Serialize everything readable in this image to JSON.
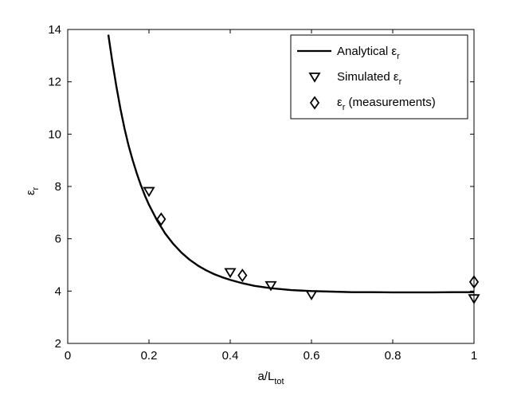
{
  "chart_data": {
    "type": "line",
    "title": "",
    "xlabel": {
      "main": "a/L",
      "sub": "tot"
    },
    "ylabel": {
      "main": "ε",
      "sub": "r"
    },
    "xlim": [
      0,
      1
    ],
    "ylim": [
      2,
      14
    ],
    "xticks": [
      0,
      0.2,
      0.4,
      0.6,
      0.8,
      1
    ],
    "xtick_labels": [
      "0",
      "0.2",
      "0.4",
      "0.6",
      "0.8",
      "1"
    ],
    "yticks": [
      2,
      4,
      6,
      8,
      10,
      12,
      14
    ],
    "ytick_labels": [
      "2",
      "4",
      "6",
      "8",
      "10",
      "12",
      "14"
    ],
    "grid": false,
    "legend_position": "top-right",
    "series": [
      {
        "name": {
          "main": "Analytical ε",
          "sub": "r",
          "tail": ""
        },
        "kind": "line",
        "color": "#000000",
        "x": [
          0.1,
          0.11,
          0.12,
          0.13,
          0.14,
          0.15,
          0.16,
          0.17,
          0.18,
          0.19,
          0.2,
          0.22,
          0.24,
          0.26,
          0.28,
          0.3,
          0.32,
          0.34,
          0.36,
          0.38,
          0.4,
          0.43,
          0.46,
          0.5,
          0.55,
          0.6,
          0.65,
          0.7,
          0.75,
          0.8,
          0.85,
          0.9,
          0.95,
          1.0
        ],
        "y": [
          13.8,
          12.75,
          11.8,
          10.95,
          10.2,
          9.55,
          9.0,
          8.5,
          8.05,
          7.65,
          7.3,
          6.7,
          6.2,
          5.8,
          5.47,
          5.2,
          4.98,
          4.8,
          4.65,
          4.53,
          4.43,
          4.3,
          4.2,
          4.11,
          4.04,
          4.0,
          3.98,
          3.96,
          3.96,
          3.95,
          3.95,
          3.95,
          3.96,
          3.96
        ]
      },
      {
        "name": {
          "main": "Simulated ε",
          "sub": "r",
          "tail": ""
        },
        "kind": "scatter",
        "marker": "triangle-down",
        "color": "#000000",
        "x": [
          0.2,
          0.4,
          0.5,
          0.6,
          1.0
        ],
        "y": [
          7.8,
          4.7,
          4.2,
          3.85,
          3.7
        ]
      },
      {
        "name": {
          "main": "ε",
          "sub": "r",
          "tail": " (measurements)"
        },
        "kind": "scatter",
        "marker": "diamond",
        "color": "#000000",
        "x": [
          0.23,
          0.43,
          1.0
        ],
        "y": [
          6.75,
          4.6,
          4.35
        ]
      }
    ]
  }
}
